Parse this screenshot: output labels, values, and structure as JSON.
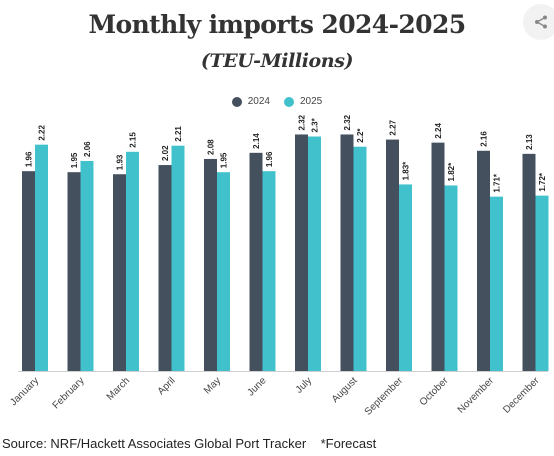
{
  "title": "Monthly imports 2024-2025",
  "subtitle": "(TEU-Millions)",
  "source": "Source: NRF/Hackett Associates Global Port Tracker    *Forecast",
  "colors": {
    "2024": "#45505f",
    "2025": "#40c1cc"
  },
  "chart_data": {
    "type": "bar",
    "title": "Monthly imports 2024-2025",
    "subtitle": "(TEU-Millions)",
    "categories": [
      "January",
      "February",
      "March",
      "April",
      "May",
      "June",
      "July",
      "August",
      "September",
      "October",
      "November",
      "December"
    ],
    "series": [
      {
        "name": "2024",
        "values": [
          1.96,
          1.95,
          1.93,
          2.02,
          2.08,
          2.14,
          2.32,
          2.32,
          2.27,
          2.24,
          2.16,
          2.13
        ],
        "labels": [
          "1.96",
          "1.95",
          "1.93",
          "2.02",
          "2.08",
          "2.14",
          "2.32",
          "2.32",
          "2.27",
          "2.24",
          "2.16",
          "2.13"
        ]
      },
      {
        "name": "2025",
        "values": [
          2.22,
          2.06,
          2.15,
          2.21,
          1.95,
          1.96,
          2.3,
          2.2,
          1.83,
          1.82,
          1.71,
          1.72
        ],
        "labels": [
          "2.22",
          "2.06",
          "2.15",
          "2.21",
          "1.95",
          "1.96",
          "2.3*",
          "2.2*",
          "1.83*",
          "1.82*",
          "1.71*",
          "1.72*"
        ]
      }
    ],
    "xlabel": "",
    "ylabel": "",
    "ylim": [
      0,
      2.5
    ],
    "grid": false,
    "legend": "top-center"
  }
}
